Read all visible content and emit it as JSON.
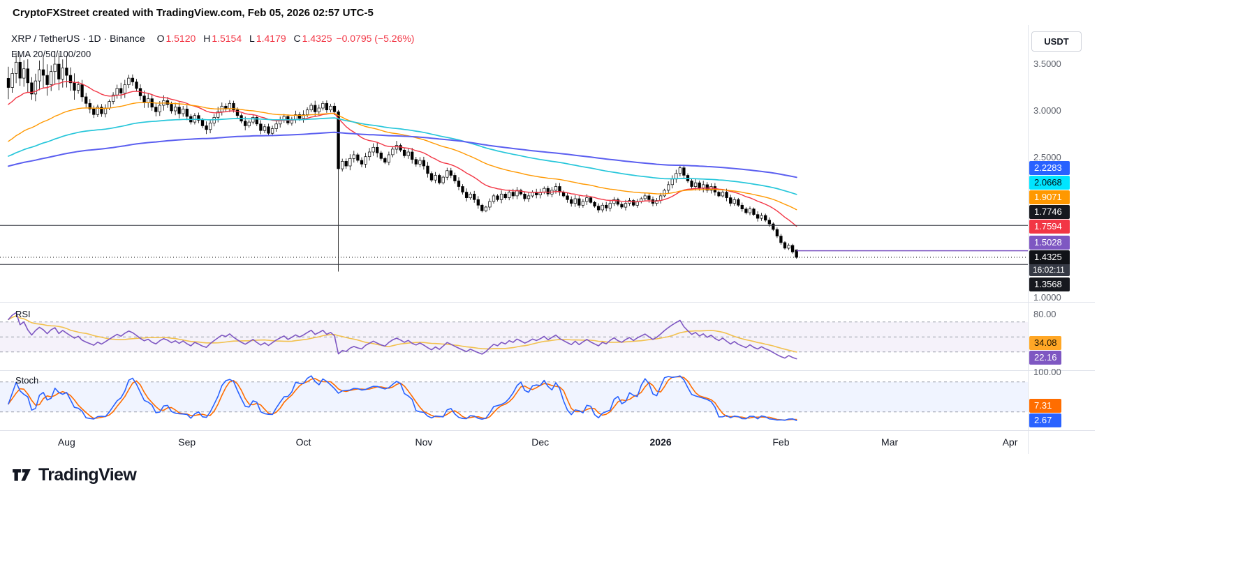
{
  "attribution": {
    "text": "CryptoFXStreet created with TradingView.com, Feb 05, 2026 02:57 UTC-5"
  },
  "header": {
    "symbol_line": "XRP / TetherUS · 1D · Binance",
    "o_label": "O",
    "o_value": "1.5120",
    "h_label": "H",
    "h_value": "1.5154",
    "l_label": "L",
    "l_value": "1.4179",
    "c_label": "C",
    "c_value": "1.4325",
    "change": "−0.0795 (−5.26%)",
    "ema_legend": "EMA 20/50/100/200"
  },
  "toolbar": {
    "currency": "USDT"
  },
  "panes": {
    "rsi": {
      "label": "RSI"
    },
    "stoch": {
      "label": "Stoch"
    }
  },
  "footer": {
    "brand": "TradingView"
  },
  "chart_data": {
    "type": "candlestick",
    "symbol": "XRP/USDT",
    "interval": "1D",
    "exchange": "Binance",
    "last_ohlc": {
      "open": 1.512,
      "high": 1.5154,
      "low": 1.4179,
      "close": 1.4325,
      "change": -0.0795,
      "change_pct": -5.26
    },
    "price_axis_range": [
      1.0,
      3.65
    ],
    "axis_ticks": [
      {
        "pane": "main",
        "v": 3.5,
        "t": "3.5000"
      },
      {
        "pane": "main",
        "v": 3.0,
        "t": "3.0000"
      },
      {
        "pane": "main",
        "v": 2.5,
        "t": "2.5000"
      },
      {
        "pane": "main",
        "v": 1.0,
        "t": "1.0000"
      },
      {
        "pane": "rsi",
        "v": 80,
        "t": "80.00"
      },
      {
        "pane": "stoch",
        "v": 100,
        "t": "100.00"
      }
    ],
    "candles_close": [
      3.25,
      3.4,
      3.52,
      3.35,
      3.45,
      3.3,
      3.18,
      3.32,
      3.44,
      3.38,
      3.28,
      3.42,
      3.5,
      3.34,
      3.46,
      3.38,
      3.3,
      3.22,
      3.28,
      3.15,
      3.08,
      3.02,
      2.96,
      3.04,
      2.97,
      3.03,
      3.1,
      3.17,
      3.24,
      3.19,
      3.28,
      3.35,
      3.31,
      3.24,
      3.16,
      3.09,
      3.13,
      3.04,
      2.99,
      3.06,
      3.11,
      3.07,
      3.0,
      3.04,
      2.97,
      3.02,
      2.94,
      2.88,
      2.95,
      2.9,
      2.84,
      2.8,
      2.87,
      2.93,
      2.99,
      3.05,
      3.02,
      3.08,
      3.01,
      2.95,
      2.89,
      2.84,
      2.88,
      2.93,
      2.86,
      2.79,
      2.83,
      2.76,
      2.81,
      2.86,
      2.9,
      2.94,
      2.87,
      2.91,
      2.96,
      2.92,
      2.96,
      3.01,
      3.06,
      2.99,
      3.03,
      3.08,
      3.01,
      3.05,
      2.99,
      2.38,
      2.46,
      2.41,
      2.49,
      2.53,
      2.47,
      2.43,
      2.51,
      2.56,
      2.61,
      2.55,
      2.49,
      2.45,
      2.53,
      2.59,
      2.63,
      2.58,
      2.52,
      2.56,
      2.48,
      2.43,
      2.47,
      2.41,
      2.33,
      2.26,
      2.31,
      2.23,
      2.29,
      2.36,
      2.31,
      2.25,
      2.19,
      2.13,
      2.07,
      2.11,
      2.05,
      1.99,
      1.93,
      1.97,
      2.03,
      2.09,
      2.05,
      2.11,
      2.07,
      2.13,
      2.09,
      2.15,
      2.11,
      2.06,
      2.09,
      2.13,
      2.1,
      2.13,
      2.17,
      2.11,
      2.15,
      2.19,
      2.13,
      2.09,
      2.05,
      2.01,
      2.06,
      1.99,
      2.03,
      2.07,
      2.02,
      1.98,
      1.94,
      1.99,
      1.96,
      2.01,
      2.05,
      2.0,
      1.97,
      2.01,
      2.04,
      1.99,
      2.03,
      2.06,
      2.09,
      2.05,
      2.01,
      2.04,
      2.09,
      2.15,
      2.21,
      2.27,
      2.33,
      2.39,
      2.31,
      2.25,
      2.19,
      2.23,
      2.17,
      2.21,
      2.15,
      2.19,
      2.13,
      2.09,
      2.13,
      2.07,
      2.01,
      2.05,
      1.99,
      1.95,
      1.91,
      1.95,
      1.89,
      1.85,
      1.88,
      1.83,
      1.79,
      1.73,
      1.66,
      1.59,
      1.53,
      1.56,
      1.49,
      1.4325
    ],
    "overrides": {
      "85": {
        "o": 2.99,
        "h": 3.01,
        "l": 1.28,
        "c": 2.38
      },
      "203": {
        "o": 1.512,
        "h": 1.5154,
        "l": 1.4179,
        "c": 1.4325
      }
    },
    "emas": {
      "periods": [
        20,
        50,
        100,
        200
      ],
      "colors": [
        "#F23645",
        "#FF9800",
        "#26C6DA",
        "#5B5FF0"
      ],
      "widths": [
        1.4,
        1.4,
        1.7,
        2
      ],
      "seeds": {
        "20": 3.05,
        "50": 2.65,
        "100": 2.5,
        "200": 2.4
      },
      "last_labels": {
        "20": "1.7594",
        "50": "1.9071",
        "100": "2.0668",
        "200": "2.2283"
      }
    },
    "price_tags": [
      {
        "v": 2.2283,
        "t": "2.2283",
        "bg": "#2962FF",
        "fg": "#FFFFFF",
        "name": "ema200"
      },
      {
        "v": 2.0668,
        "t": "2.0668",
        "bg": "#00E5FF",
        "fg": "#00131A",
        "name": "ema100"
      },
      {
        "v": 1.9071,
        "t": "1.9071",
        "bg": "#FF9800",
        "fg": "#FFFFFF",
        "name": "ema50"
      },
      {
        "v": 1.7746,
        "t": "1.7746",
        "bg": "#16181E",
        "fg": "#FFFFFF",
        "name": "level-17746"
      },
      {
        "v": 1.7594,
        "t": "1.7594",
        "bg": "#F23645",
        "fg": "#FFFFFF",
        "name": "ema20"
      },
      {
        "v": 1.5028,
        "t": "1.5028",
        "bg": "#7E57C2",
        "fg": "#FFFFFF",
        "name": "ray-15028"
      },
      {
        "v": 1.3568,
        "t": "1.3568",
        "bg": "#16181E",
        "fg": "#FFFFFF",
        "name": "level-13568"
      }
    ],
    "current_tag": {
      "v": 1.4325,
      "t": "1.4325",
      "countdown": "16:02:11",
      "bg": "#101217",
      "fg": "#FFFFFF",
      "countdown_bg": "#363A45"
    },
    "levels": [
      {
        "value": 1.7746,
        "style": "solid",
        "color": "#30343E"
      },
      {
        "value": 1.3568,
        "style": "solid",
        "color": "#30343E"
      },
      {
        "value": 1.5028,
        "style": "ray",
        "color": "#7E57C2"
      }
    ],
    "current_price": 1.4325,
    "rsi": {
      "period": 14,
      "seed_avg_gain": 0.03,
      "seed_avg_loss": 0.011,
      "line_color": "#7E57C2",
      "ma_color": "#F2C14E",
      "band": [
        30,
        70
      ],
      "mid": 50,
      "upper_tick": 80,
      "last": 22.16,
      "ma_last": 34.08,
      "tags": [
        {
          "v": 34.08,
          "t": "34.08",
          "bg": "#FFA726",
          "fg": "#1A1200",
          "name": "rsi-ma"
        },
        {
          "v": 22.16,
          "t": "22.16",
          "bg": "#7E57C2",
          "fg": "#FFFFFF",
          "name": "rsi"
        }
      ]
    },
    "stoch": {
      "k_color": "#2962FF",
      "d_color": "#FF6D00",
      "band": [
        20,
        80
      ],
      "upper_tick": 100,
      "last_k": 2.67,
      "last_d": 7.31,
      "tags": [
        {
          "v": 7.31,
          "t": "7.31",
          "bg": "#FF6D00",
          "fg": "#FFFFFF",
          "name": "stoch-d"
        },
        {
          "v": 2.67,
          "t": "2.67",
          "bg": "#2962FF",
          "fg": "#FFFFFF",
          "name": "stoch-k"
        }
      ]
    },
    "months": [
      {
        "label": "Aug",
        "i": 15
      },
      {
        "label": "Sep",
        "i": 46
      },
      {
        "label": "Oct",
        "i": 76
      },
      {
        "label": "Nov",
        "i": 107
      },
      {
        "label": "Dec",
        "i": 137
      },
      {
        "label": "2026",
        "i": 168,
        "bold": true
      },
      {
        "label": "Feb",
        "i": 199
      },
      {
        "label": "Mar",
        "i": 227
      },
      {
        "label": "Apr",
        "i": 258
      }
    ],
    "candle_colors": {
      "up_fill": "#FFFFFF",
      "down_fill": "#000000",
      "border": "#000000",
      "wick": "#000000"
    },
    "band_fills": {
      "rsi": "rgba(126,87,194,0.08)",
      "stoch": "rgba(41,98,255,0.07)",
      "guide": "#9B9FAB"
    }
  }
}
